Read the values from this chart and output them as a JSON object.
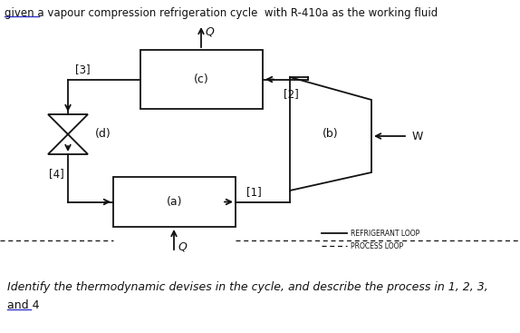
{
  "title": "given a vapour compression refrigeration cycle  with R-410a as the working fluid",
  "title_fontsize": 8.5,
  "bg_color": "#ffffff",
  "text_color": "#111111",
  "box_c_label": "(c)",
  "box_a_label": "(a)",
  "label_3": "[3]",
  "label_2": "[2]",
  "label_1": "[1]",
  "label_4": "[4]",
  "label_b": "(b)",
  "label_d": "(d)",
  "label_w": "W",
  "label_Qout": "Q",
  "label_Qin": "Q",
  "legend_solid": "REFRIGERANT LOOP",
  "legend_dashed": "PROCESS LOOP",
  "bottom_text_1": "Identify the thermodynamic devises in the cycle, and describe the process in 1, 2, 3,",
  "bottom_text_2": "and 4"
}
